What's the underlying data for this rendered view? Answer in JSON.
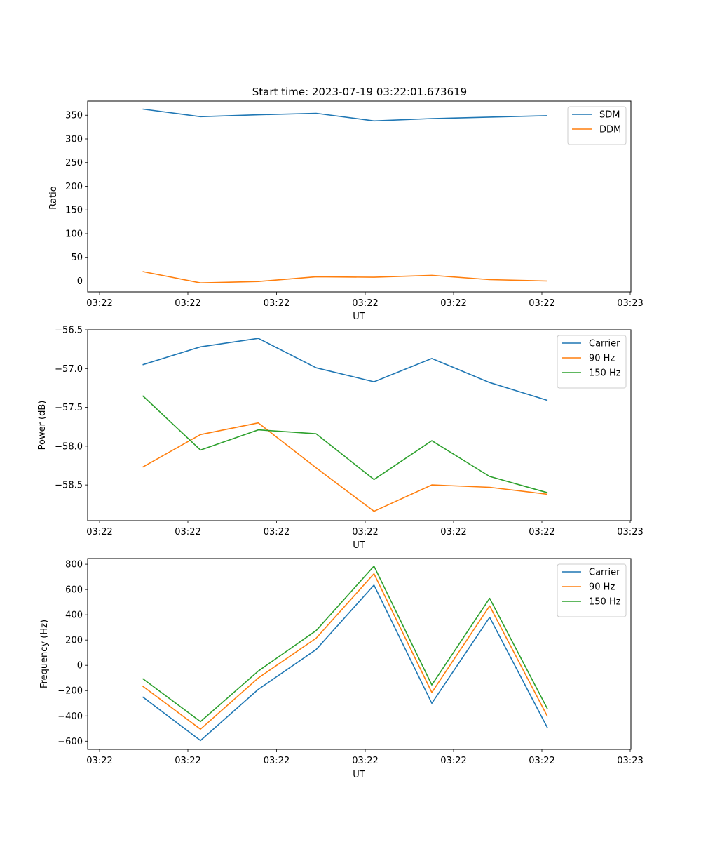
{
  "chart_data": [
    {
      "type": "line",
      "title": "Start time: 2023-07-19 03:22:01.673619",
      "xlabel": "UT",
      "ylabel": "Ratio",
      "x_tick_labels": [
        "03:22",
        "03:22",
        "03:22",
        "03:22",
        "03:22",
        "03:22",
        "03:23"
      ],
      "y_ticks": [
        0,
        50,
        100,
        150,
        200,
        250,
        300,
        350
      ],
      "ylim": [
        -23,
        380
      ],
      "legend_position": "top-right",
      "grid": false,
      "x": [
        1,
        2,
        3,
        4,
        5,
        6,
        7,
        8
      ],
      "series": [
        {
          "name": "SDM",
          "color": "#1f77b4",
          "values": [
            363,
            347,
            351,
            354,
            338,
            343,
            346,
            349
          ]
        },
        {
          "name": "DDM",
          "color": "#ff7f0e",
          "values": [
            20,
            -4,
            -1,
            9,
            8,
            12,
            3,
            0
          ]
        }
      ]
    },
    {
      "type": "line",
      "title": "",
      "xlabel": "UT",
      "ylabel": "Power (dB)",
      "x_tick_labels": [
        "03:22",
        "03:22",
        "03:22",
        "03:22",
        "03:22",
        "03:22",
        "03:23"
      ],
      "y_ticks": [
        -58.5,
        -58.0,
        -57.5,
        -57.0,
        -56.5
      ],
      "y_tick_labels": [
        "−58.5",
        "−58.0",
        "−57.5",
        "−57.0",
        "−56.5"
      ],
      "ylim": [
        -58.96,
        -56.5
      ],
      "legend_position": "top-right",
      "grid": false,
      "x": [
        1,
        2,
        3,
        4,
        5,
        6,
        7,
        8
      ],
      "series": [
        {
          "name": "Carrier",
          "color": "#1f77b4",
          "values": [
            -56.95,
            -56.72,
            -56.61,
            -56.99,
            -57.17,
            -56.87,
            -57.18,
            -57.41
          ]
        },
        {
          "name": "90 Hz",
          "color": "#ff7f0e",
          "values": [
            -58.27,
            -57.85,
            -57.7,
            -58.28,
            -58.84,
            -58.5,
            -58.53,
            -58.62
          ]
        },
        {
          "name": "150 Hz",
          "color": "#2ca02c",
          "values": [
            -57.35,
            -58.05,
            -57.79,
            -57.84,
            -58.43,
            -57.93,
            -58.39,
            -58.6
          ]
        }
      ]
    },
    {
      "type": "line",
      "title": "",
      "xlabel": "UT",
      "ylabel": "Frequency (Hz)",
      "x_tick_labels": [
        "03:22",
        "03:22",
        "03:22",
        "03:22",
        "03:22",
        "03:22",
        "03:23"
      ],
      "y_ticks": [
        -600,
        -400,
        -200,
        0,
        200,
        400,
        600,
        800
      ],
      "y_tick_labels": [
        "−600",
        "−400",
        "−200",
        "0",
        "200",
        "400",
        "600",
        "800"
      ],
      "ylim": [
        -665,
        845
      ],
      "legend_position": "top-right",
      "grid": false,
      "x": [
        1,
        2,
        3,
        4,
        5,
        6,
        7,
        8
      ],
      "series": [
        {
          "name": "Carrier",
          "color": "#1f77b4",
          "values": [
            -250,
            -595,
            -190,
            125,
            635,
            -300,
            380,
            -495
          ]
        },
        {
          "name": "90 Hz",
          "color": "#ff7f0e",
          "values": [
            -165,
            -505,
            -100,
            215,
            725,
            -215,
            470,
            -405
          ]
        },
        {
          "name": "150 Hz",
          "color": "#2ca02c",
          "values": [
            -105,
            -445,
            -45,
            275,
            785,
            -155,
            530,
            -345
          ]
        }
      ]
    }
  ]
}
